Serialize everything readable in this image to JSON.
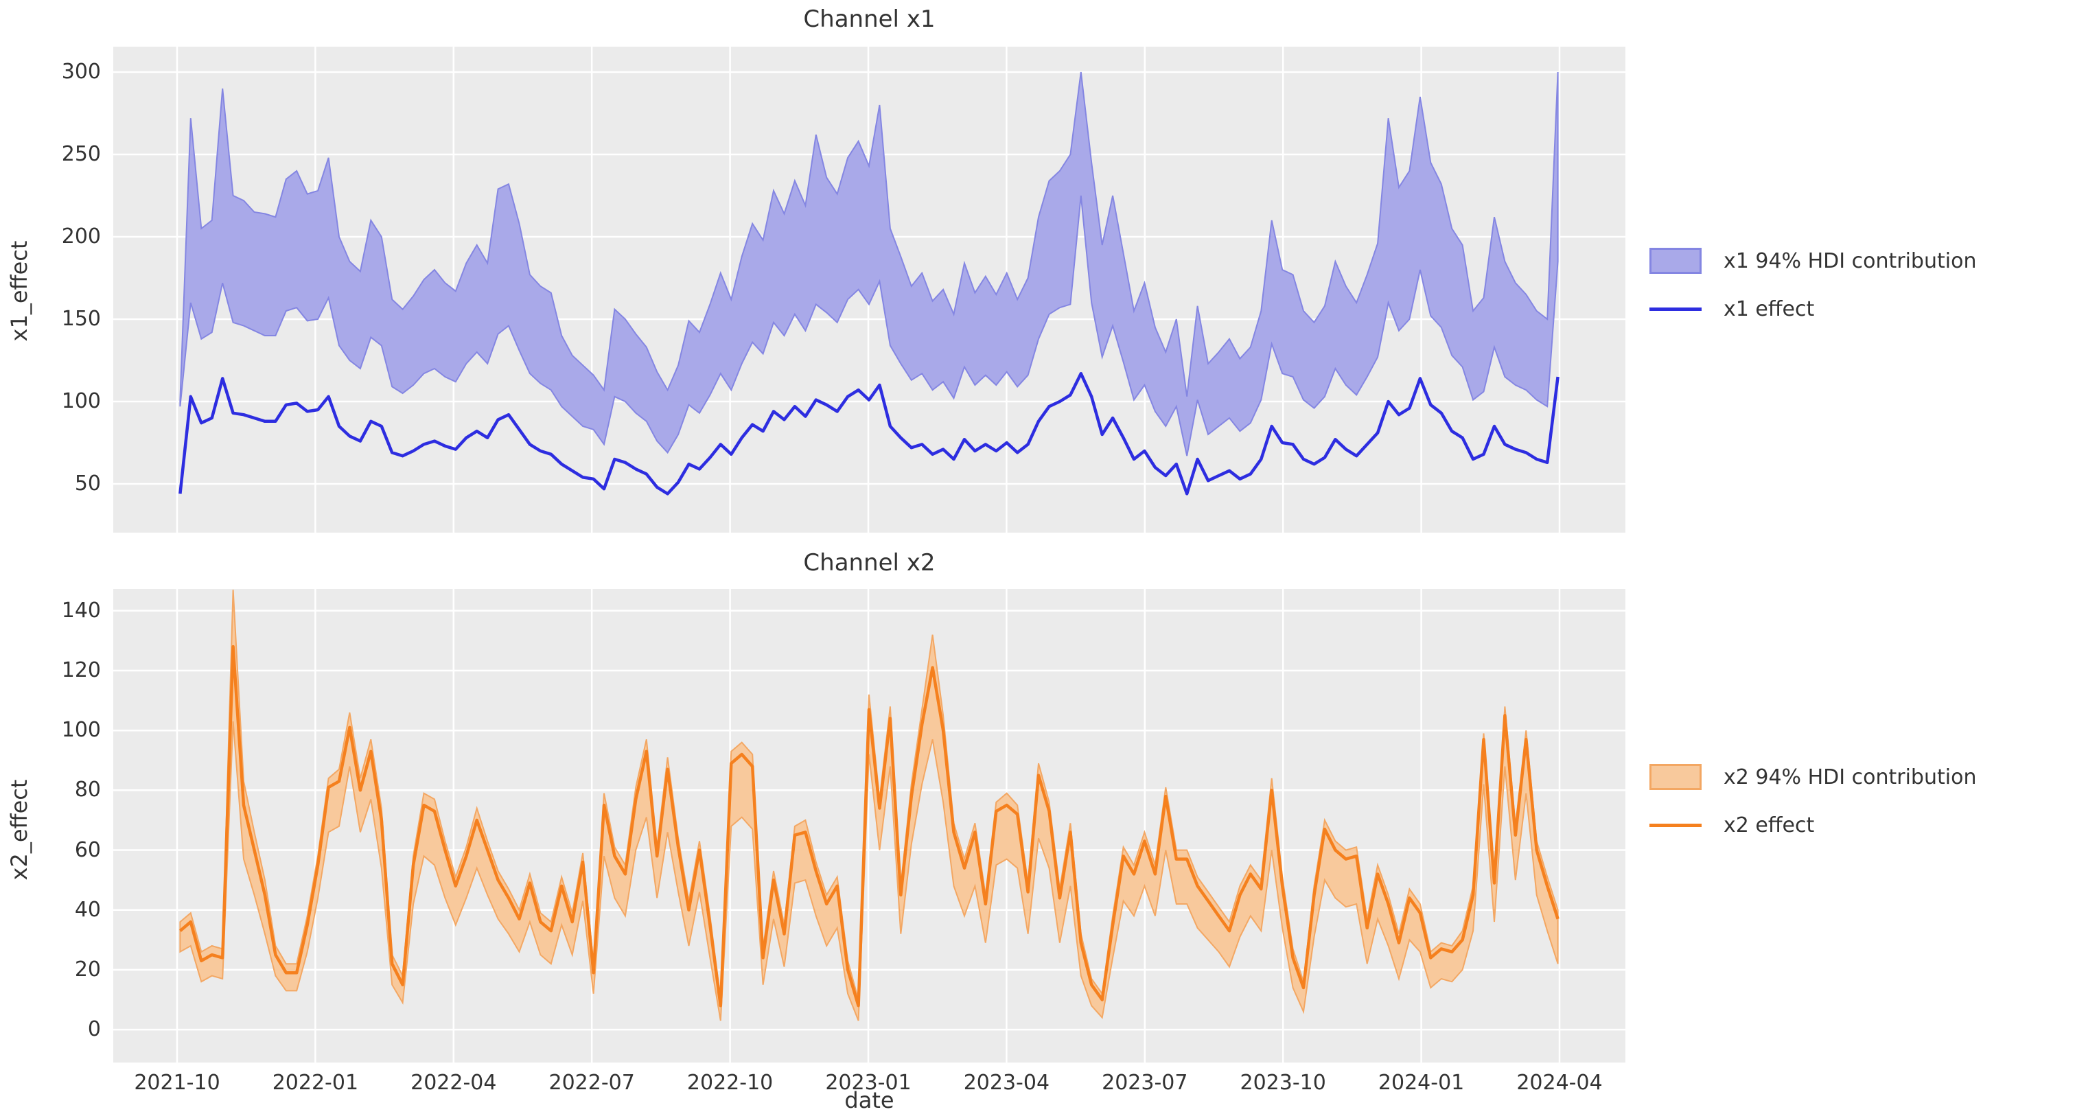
{
  "figure": {
    "background": "#ffffff",
    "plot_background": "#ebebeb",
    "grid_color": "#ffffff",
    "text_color": "#333333"
  },
  "x_axis": {
    "label": "date",
    "tick_labels": [
      "2021-10",
      "2022-01",
      "2022-04",
      "2022-07",
      "2022-10",
      "2023-01",
      "2023-04",
      "2023-07",
      "2023-10",
      "2024-01",
      "2024-04"
    ],
    "start_date": "2021-10-03",
    "interval_days": 7,
    "n_points": 131
  },
  "chart_data": [
    {
      "type": "line",
      "title": "Channel x1",
      "ylabel": "x1_effect",
      "legend": {
        "band": "x1 94% HDI contribution",
        "line": "x1 effect"
      },
      "colors": {
        "line": "#2d2de0",
        "band_fill": "#a9a9e9",
        "band_edge": "#8486e2"
      },
      "yticks": [
        50,
        100,
        150,
        200,
        250,
        300
      ],
      "ylim": [
        20.4,
        315.4
      ],
      "grid": true,
      "legend_position": "right",
      "series": {
        "line": [
          44,
          103,
          87,
          90,
          114,
          93,
          92,
          90,
          88,
          88,
          98,
          99,
          94,
          95,
          103,
          85,
          79,
          76,
          88,
          85,
          69,
          67,
          70,
          74,
          76,
          73,
          71,
          78,
          82,
          78,
          89,
          92,
          83,
          74,
          70,
          68,
          62,
          58,
          54,
          53,
          47,
          65,
          63,
          59,
          56,
          48,
          44,
          51,
          62,
          59,
          66,
          74,
          68,
          78,
          86,
          82,
          94,
          89,
          97,
          91,
          101,
          98,
          94,
          103,
          107,
          101,
          110,
          85,
          78,
          72,
          74,
          68,
          71,
          65,
          77,
          70,
          74,
          70,
          75,
          69,
          74,
          88,
          97,
          100,
          104,
          117,
          103,
          80,
          90,
          78,
          65,
          70,
          60,
          55,
          62,
          44,
          65,
          52,
          55,
          58,
          53,
          56,
          65,
          85,
          75,
          74,
          65,
          62,
          66,
          77,
          71,
          67,
          74,
          81,
          100,
          92,
          96,
          114,
          98,
          93,
          82,
          78,
          65,
          68,
          85,
          74,
          71,
          69,
          65,
          63,
          115
        ],
        "hdi_upper": [
          101,
          272,
          205,
          210,
          290,
          225,
          222,
          215,
          214,
          212,
          235,
          240,
          226,
          228,
          248,
          200,
          185,
          179,
          210,
          200,
          162,
          156,
          164,
          174,
          180,
          172,
          167,
          184,
          195,
          184,
          229,
          232,
          208,
          177,
          170,
          166,
          140,
          128,
          122,
          116,
          107,
          156,
          150,
          141,
          133,
          118,
          107,
          122,
          149,
          142,
          159,
          178,
          162,
          188,
          208,
          198,
          228,
          214,
          234,
          219,
          262,
          236,
          226,
          248,
          258,
          243,
          280,
          205,
          188,
          170,
          178,
          161,
          168,
          153,
          184,
          166,
          176,
          165,
          178,
          162,
          175,
          212,
          234,
          240,
          250,
          300,
          245,
          195,
          225,
          190,
          155,
          172,
          145,
          130,
          150,
          103,
          158,
          123,
          130,
          138,
          126,
          133,
          155,
          210,
          180,
          177,
          155,
          148,
          158,
          185,
          170,
          160,
          177,
          196,
          272,
          230,
          240,
          285,
          245,
          232,
          205,
          195,
          155,
          163,
          212,
          185,
          172,
          165,
          155,
          150,
          300
        ],
        "hdi_lower": [
          97,
          160,
          138,
          142,
          172,
          148,
          146,
          143,
          140,
          140,
          155,
          157,
          149,
          150,
          163,
          134,
          125,
          120,
          139,
          134,
          109,
          105,
          110,
          117,
          120,
          115,
          112,
          123,
          130,
          123,
          141,
          146,
          131,
          117,
          111,
          107,
          97,
          91,
          85,
          83,
          74,
          103,
          100,
          93,
          88,
          76,
          69,
          80,
          98,
          93,
          104,
          117,
          107,
          123,
          136,
          129,
          148,
          140,
          153,
          143,
          159,
          154,
          148,
          162,
          168,
          159,
          173,
          134,
          123,
          113,
          117,
          107,
          112,
          102,
          121,
          110,
          116,
          110,
          118,
          109,
          116,
          138,
          153,
          157,
          159,
          225,
          160,
          127,
          146,
          124,
          101,
          110,
          94,
          85,
          97,
          67,
          101,
          80,
          85,
          90,
          82,
          87,
          101,
          135,
          117,
          115,
          101,
          96,
          103,
          120,
          110,
          104,
          115,
          127,
          160,
          143,
          150,
          180,
          152,
          145,
          128,
          121,
          101,
          106,
          133,
          115,
          110,
          107,
          101,
          97,
          185
        ]
      }
    },
    {
      "type": "line",
      "title": "Channel x2",
      "ylabel": "x2_effect",
      "legend": {
        "band": "x2 94% HDI contribution",
        "line": "x2 effect"
      },
      "colors": {
        "line": "#f5801e",
        "band_fill": "#f8c99c",
        "band_edge": "#f3a763"
      },
      "yticks": [
        0,
        20,
        40,
        60,
        80,
        100,
        120,
        140
      ],
      "ylim": [
        -11.0,
        147.3
      ],
      "grid": true,
      "legend_position": "right",
      "series": {
        "line": [
          33,
          36,
          23,
          25,
          24,
          128,
          75,
          60,
          45,
          25,
          19,
          19,
          35,
          55,
          81,
          83,
          101,
          80,
          93,
          70,
          22,
          15,
          55,
          75,
          73,
          60,
          48,
          58,
          70,
          60,
          50,
          44,
          37,
          49,
          36,
          33,
          48,
          36,
          56,
          19,
          75,
          58,
          52,
          77,
          93,
          58,
          87,
          61,
          40,
          60,
          35,
          8,
          89,
          92,
          88,
          24,
          50,
          32,
          65,
          66,
          53,
          42,
          48,
          20,
          8,
          107,
          74,
          104,
          45,
          78,
          102,
          121,
          100,
          66,
          54,
          66,
          42,
          73,
          75,
          72,
          46,
          85,
          73,
          44,
          66,
          29,
          15,
          10,
          35,
          58,
          52,
          63,
          52,
          78,
          57,
          57,
          48,
          43,
          38,
          33,
          45,
          52,
          47,
          80,
          48,
          24,
          14,
          45,
          67,
          60,
          57,
          58,
          34,
          52,
          42,
          29,
          44,
          39,
          24,
          27,
          26,
          30,
          45,
          97,
          49,
          105,
          65,
          97,
          60,
          48,
          37
        ],
        "hdi_upper": [
          36,
          39,
          26,
          28,
          27,
          147,
          83,
          66,
          50,
          28,
          22,
          22,
          38,
          58,
          84,
          87,
          106,
          84,
          97,
          74,
          25,
          18,
          58,
          79,
          77,
          63,
          51,
          61,
          74,
          63,
          53,
          47,
          40,
          52,
          39,
          36,
          51,
          39,
          59,
          22,
          79,
          61,
          55,
          81,
          97,
          61,
          91,
          64,
          43,
          63,
          38,
          10,
          93,
          96,
          92,
          27,
          53,
          35,
          68,
          70,
          56,
          45,
          51,
          23,
          10,
          112,
          77,
          108,
          48,
          82,
          107,
          132,
          105,
          69,
          57,
          69,
          45,
          76,
          79,
          75,
          49,
          89,
          76,
          47,
          69,
          32,
          17,
          12,
          38,
          61,
          55,
          66,
          55,
          81,
          60,
          60,
          51,
          46,
          41,
          36,
          48,
          55,
          50,
          84,
          51,
          27,
          16,
          48,
          70,
          63,
          60,
          61,
          37,
          55,
          45,
          32,
          47,
          42,
          26,
          29,
          28,
          33,
          48,
          99,
          52,
          108,
          68,
          100,
          63,
          51,
          40
        ],
        "hdi_lower": [
          26,
          28,
          16,
          18,
          17,
          103,
          57,
          45,
          32,
          18,
          13,
          13,
          26,
          44,
          66,
          68,
          88,
          66,
          77,
          54,
          15,
          9,
          42,
          58,
          55,
          44,
          35,
          44,
          54,
          45,
          37,
          32,
          26,
          36,
          25,
          22,
          35,
          25,
          43,
          12,
          58,
          44,
          38,
          60,
          71,
          44,
          66,
          46,
          28,
          46,
          24,
          3,
          68,
          71,
          67,
          15,
          37,
          21,
          49,
          50,
          38,
          28,
          34,
          12,
          3,
          92,
          60,
          88,
          32,
          62,
          82,
          97,
          76,
          48,
          38,
          48,
          29,
          55,
          57,
          54,
          32,
          64,
          54,
          29,
          48,
          18,
          8,
          4,
          24,
          43,
          38,
          48,
          38,
          60,
          42,
          42,
          34,
          30,
          26,
          21,
          31,
          38,
          33,
          60,
          34,
          14,
          6,
          31,
          50,
          44,
          41,
          42,
          22,
          37,
          28,
          17,
          30,
          26,
          14,
          17,
          16,
          20,
          33,
          82,
          36,
          88,
          50,
          79,
          45,
          33,
          22
        ]
      }
    }
  ]
}
